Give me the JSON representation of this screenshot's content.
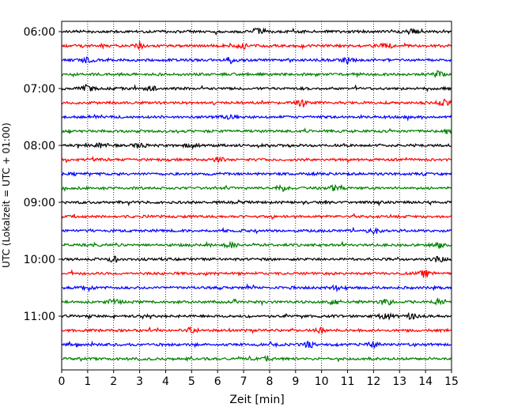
{
  "chart_data": {
    "type": "line",
    "title": "",
    "xlabel": "Zeit  [min]",
    "ylabel": "UTC (Lokalzeit = UTC + 01:00)",
    "xlim": [
      0,
      15
    ],
    "xticks": [
      0,
      1,
      2,
      3,
      4,
      5,
      6,
      7,
      8,
      9,
      10,
      11,
      12,
      13,
      14,
      15
    ],
    "ytick_labels": [
      "06:00",
      "07:00",
      "08:00",
      "09:00",
      "10:00",
      "11:00"
    ],
    "grid": "vertical dotted",
    "trace_interval_minutes": 15,
    "trace_start": "06:00",
    "trace_colors_cycle": [
      "#000000",
      "#ff0000",
      "#0000ff",
      "#008000"
    ],
    "traces": [
      {
        "start": "06:00",
        "color": "#000000",
        "events_min": [
          7.5,
          13.5
        ]
      },
      {
        "start": "06:15",
        "color": "#ff0000",
        "events_min": [
          3.0,
          7.0,
          12.5
        ]
      },
      {
        "start": "06:30",
        "color": "#0000ff",
        "events_min": [
          1.0,
          6.5,
          11.0
        ]
      },
      {
        "start": "06:45",
        "color": "#008000",
        "events_min": [
          14.5
        ]
      },
      {
        "start": "07:00",
        "color": "#000000",
        "events_min": [
          1.0,
          3.5
        ]
      },
      {
        "start": "07:15",
        "color": "#ff0000",
        "events_min": [
          9.2,
          14.7
        ]
      },
      {
        "start": "07:30",
        "color": "#0000ff",
        "events_min": [
          6.5
        ]
      },
      {
        "start": "07:45",
        "color": "#008000",
        "events_min": [
          14.8
        ]
      },
      {
        "start": "08:00",
        "color": "#000000",
        "events_min": [
          1.5,
          3.0,
          5.0
        ]
      },
      {
        "start": "08:15",
        "color": "#ff0000",
        "events_min": [
          6.0
        ]
      },
      {
        "start": "08:30",
        "color": "#0000ff",
        "events_min": []
      },
      {
        "start": "08:45",
        "color": "#008000",
        "events_min": [
          8.5,
          10.5
        ]
      },
      {
        "start": "09:00",
        "color": "#000000",
        "events_min": []
      },
      {
        "start": "09:15",
        "color": "#ff0000",
        "events_min": []
      },
      {
        "start": "09:30",
        "color": "#0000ff",
        "events_min": [
          12.0
        ]
      },
      {
        "start": "09:45",
        "color": "#008000",
        "events_min": [
          6.5,
          14.5
        ]
      },
      {
        "start": "10:00",
        "color": "#000000",
        "events_min": [
          2.0,
          14.5
        ]
      },
      {
        "start": "10:15",
        "color": "#ff0000",
        "events_min": [
          14.0
        ]
      },
      {
        "start": "10:30",
        "color": "#0000ff",
        "events_min": [
          1.0,
          10.5
        ]
      },
      {
        "start": "10:45",
        "color": "#008000",
        "events_min": [
          2.0,
          10.5,
          12.5,
          14.5
        ]
      },
      {
        "start": "11:00",
        "color": "#000000",
        "events_min": [
          12.5,
          13.5
        ]
      },
      {
        "start": "11:15",
        "color": "#ff0000",
        "events_min": [
          5.0,
          10.0
        ]
      },
      {
        "start": "11:30",
        "color": "#0000ff",
        "events_min": [
          9.5,
          12.0
        ]
      },
      {
        "start": "11:45",
        "color": "#008000",
        "events_min": [
          8.0
        ]
      }
    ]
  }
}
